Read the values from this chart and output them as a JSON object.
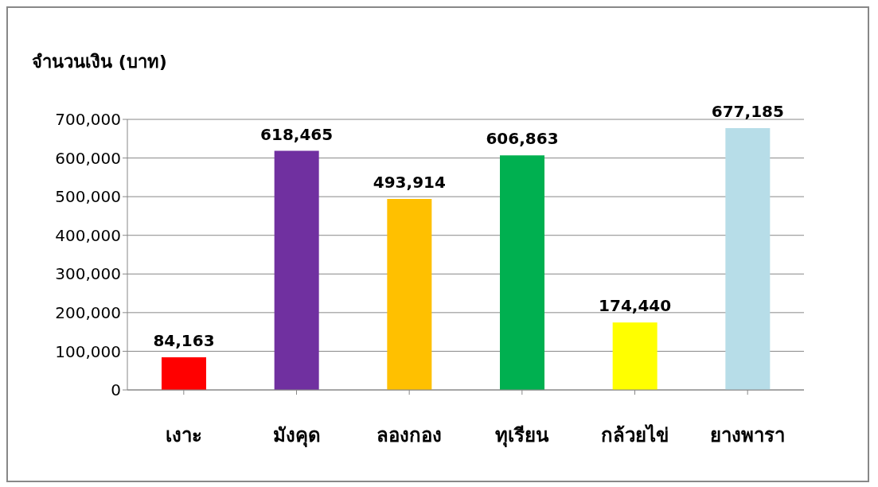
{
  "chart_data": {
    "type": "bar",
    "ylabel": "จำนวนเงิน (บาท)",
    "categories": [
      "เงาะ",
      "มังคุด",
      "ลองกอง",
      "ทุเรียน",
      "กล้วยไข่",
      "ยางพารา"
    ],
    "values": [
      84163,
      618465,
      493914,
      606863,
      174440,
      677185
    ],
    "value_labels": [
      "84,163",
      "618,465",
      "493,914",
      "606,863",
      "174,440",
      "677,185"
    ],
    "colors": [
      "#ff0000",
      "#7030a0",
      "#ffc000",
      "#00b050",
      "#ffff00",
      "#b7dde8"
    ],
    "ylim": [
      0,
      700000
    ],
    "yticks": [
      0,
      {
        "value": 100000,
        "label": "100,000"
      },
      {
        "value": 200000,
        "label": "200,000"
      },
      {
        "value": 300000,
        "label": "300,000"
      },
      {
        "value": 400000,
        "label": "400,000"
      },
      {
        "value": 500000,
        "label": "500,000"
      },
      {
        "value": 600000,
        "label": "600,000"
      },
      {
        "value": 700000,
        "label": "700,000"
      }
    ],
    "grid": "y"
  }
}
